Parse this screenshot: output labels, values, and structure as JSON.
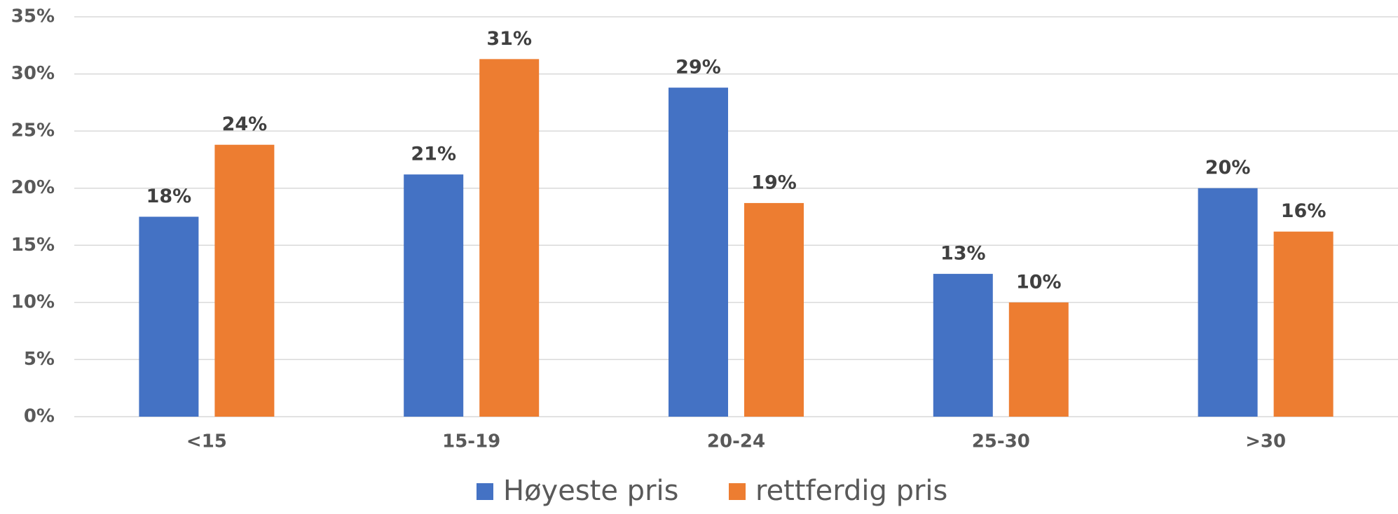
{
  "chart_data": {
    "type": "bar",
    "categories": [
      "<15",
      "15-19",
      "20-24",
      "25-30",
      ">30"
    ],
    "series": [
      {
        "name": "Høyeste pris",
        "color": "#4472c4",
        "values": [
          17.5,
          21.2,
          28.8,
          12.5,
          20.0
        ],
        "value_labels": [
          "18%",
          "21%",
          "29%",
          "13%",
          "20%"
        ]
      },
      {
        "name": "rettferdig pris",
        "color": "#ed7d31",
        "values": [
          23.8,
          31.3,
          18.7,
          10.0,
          16.2
        ],
        "value_labels": [
          "24%",
          "31%",
          "19%",
          "10%",
          "16%"
        ]
      }
    ],
    "ylim": [
      0,
      35
    ],
    "yticks": [
      {
        "value": 0,
        "label": "0%"
      },
      {
        "value": 5,
        "label": "5%"
      },
      {
        "value": 10,
        "label": "10%"
      },
      {
        "value": 15,
        "label": "15%"
      },
      {
        "value": 20,
        "label": "20%"
      },
      {
        "value": 25,
        "label": "25%"
      },
      {
        "value": 30,
        "label": "30%"
      },
      {
        "value": 35,
        "label": "35%"
      }
    ],
    "grid": true,
    "legend": "bottom"
  }
}
